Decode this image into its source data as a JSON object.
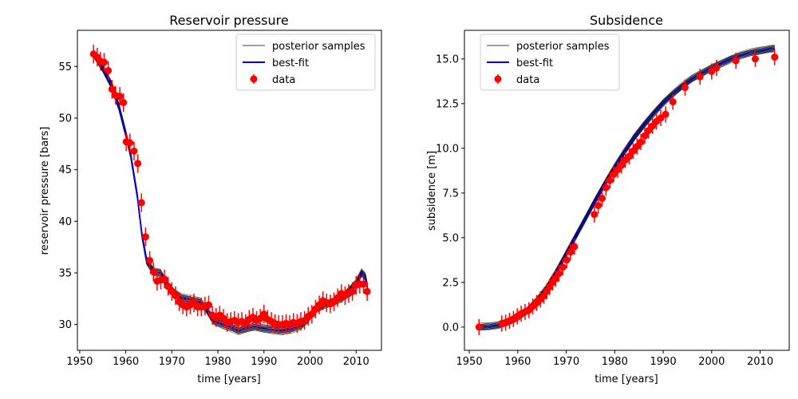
{
  "figure": {
    "background": "#ffffff"
  },
  "chart_data": [
    {
      "type": "line",
      "title": "Reservoir pressure",
      "xlabel": "time [years]",
      "ylabel": "reservoir pressure [bars]",
      "xlim": [
        1949.5,
        2015.5
      ],
      "ylim": [
        27.5,
        58.5
      ],
      "xticks": [
        1950,
        1960,
        1970,
        1980,
        1990,
        2000,
        2010
      ],
      "yticks": [
        30,
        35,
        40,
        45,
        50,
        55
      ],
      "grid": false,
      "legend": {
        "location": "upper right",
        "entries": [
          {
            "label": "posterior samples",
            "kind": "line",
            "color": "#000000"
          },
          {
            "label": "best-fit",
            "kind": "line",
            "color": "#0000ff"
          },
          {
            "label": "data",
            "kind": "errorbar",
            "color": "#ff0000"
          }
        ]
      },
      "series": [
        {
          "name": "best-fit",
          "color": "#0000ff",
          "x": [
            1952.9,
            1955,
            1957,
            1958.5,
            1960,
            1961,
            1962.5,
            1963.5,
            1964.5,
            1966,
            1967.5,
            1969,
            1970.5,
            1972,
            1974,
            1976,
            1977.5,
            1979,
            1981,
            1983,
            1984.5,
            1986,
            1988,
            1990,
            1992,
            1994,
            1996,
            1998,
            1999.5,
            2001,
            2003,
            2005,
            2007,
            2008.5,
            2010,
            2011.2,
            2012,
            2012.5
          ],
          "y": [
            56.3,
            54.8,
            53.1,
            51.1,
            48.5,
            46.6,
            42.5,
            38.7,
            36.2,
            35.1,
            35.0,
            33.8,
            33.1,
            32.6,
            32.4,
            32.2,
            31.5,
            30.4,
            30.0,
            29.7,
            29.4,
            29.6,
            29.8,
            29.6,
            29.5,
            29.4,
            29.6,
            29.9,
            30.5,
            31.4,
            31.9,
            32.2,
            32.6,
            33.3,
            34.0,
            35.0,
            34.6,
            33.5
          ]
        },
        {
          "name": "posterior samples",
          "color": "#000000",
          "spread": 0.35
        },
        {
          "name": "data",
          "color": "#ff0000",
          "error": 0.9,
          "x": [
            1953,
            1953.8,
            1954.5,
            1955.3,
            1956.2,
            1957,
            1957.8,
            1958.7,
            1959.5,
            1960.1,
            1960.9,
            1961.8,
            1962.6,
            1963.4,
            1964.3,
            1965.2,
            1966,
            1966.8,
            1967.6,
            1968.4,
            1969.2,
            1970,
            1970.8,
            1971.6,
            1972.4,
            1973.2,
            1974,
            1974.8,
            1975.6,
            1976.4,
            1977.2,
            1978,
            1978.8,
            1979.6,
            1980.4,
            1981.2,
            1982,
            1982.8,
            1983.6,
            1984.4,
            1985.2,
            1986,
            1986.8,
            1987.6,
            1988.4,
            1989.2,
            1990,
            1990.8,
            1991.6,
            1992.4,
            1993.2,
            1994,
            1994.8,
            1995.6,
            1996.4,
            1997.2,
            1998,
            1998.8,
            1999.6,
            2000.4,
            2001.2,
            2002,
            2002.8,
            2003.6,
            2004.4,
            2005.2,
            2006,
            2006.8,
            2007.6,
            2008.4,
            2009.2,
            2010,
            2010.8,
            2011.6,
            2012.4
          ],
          "y": [
            56.2,
            55.9,
            55.5,
            55.4,
            54.6,
            52.8,
            52.2,
            52.1,
            51.5,
            47.7,
            47.6,
            46.8,
            45.6,
            41.8,
            38.5,
            36.2,
            35.1,
            34.2,
            34.3,
            34.4,
            33.7,
            33.2,
            32.8,
            32.2,
            31.9,
            31.7,
            31.9,
            32.1,
            31.7,
            31.7,
            31.8,
            31.9,
            30.9,
            30.7,
            30.9,
            30.6,
            30.2,
            30.3,
            30.4,
            30.2,
            30.3,
            30.1,
            30.5,
            30.7,
            30.4,
            30.6,
            31.0,
            30.5,
            30.3,
            30.1,
            30.0,
            30.0,
            30.1,
            30.0,
            30.2,
            30.1,
            30.3,
            30.4,
            30.8,
            31.0,
            31.5,
            31.9,
            32.3,
            32.1,
            32.0,
            32.2,
            32.6,
            33.0,
            32.8,
            33.0,
            33.2,
            33.8,
            33.9,
            33.9,
            33.2
          ]
        }
      ]
    },
    {
      "type": "line",
      "title": "Subsidence",
      "xlabel": "time [years]",
      "ylabel": "subsidence [m]",
      "xlim": [
        1949,
        2016
      ],
      "ylim": [
        -1.3,
        16.6
      ],
      "xticks": [
        1950,
        1960,
        1970,
        1980,
        1990,
        2000,
        2010
      ],
      "yticks": [
        0.0,
        2.5,
        5.0,
        7.5,
        10.0,
        12.5,
        15.0
      ],
      "ytick_labels": [
        "0.0",
        "2.5",
        "5.0",
        "7.5",
        "10.0",
        "12.5",
        "15.0"
      ],
      "grid": false,
      "legend": {
        "location": "upper left",
        "entries": [
          {
            "label": "posterior samples",
            "kind": "line",
            "color": "#000000"
          },
          {
            "label": "best-fit",
            "kind": "line",
            "color": "#0000ff"
          },
          {
            "label": "data",
            "kind": "errorbar",
            "color": "#ff0000"
          }
        ]
      },
      "series": [
        {
          "name": "best-fit",
          "color": "#0000ff",
          "x": [
            1952,
            1954,
            1956,
            1958,
            1960,
            1962,
            1964,
            1966,
            1968,
            1970,
            1972,
            1974,
            1976,
            1978,
            1980,
            1982,
            1984,
            1986,
            1988,
            1990,
            1992,
            1994,
            1996,
            1998,
            2000,
            2002,
            2004,
            2006,
            2008,
            2010,
            2012,
            2013
          ],
          "y": [
            0.0,
            0.03,
            0.1,
            0.3,
            0.55,
            0.95,
            1.5,
            2.2,
            3.1,
            4.1,
            5.1,
            6.1,
            7.1,
            8.05,
            8.95,
            9.8,
            10.6,
            11.3,
            11.95,
            12.55,
            13.05,
            13.5,
            13.9,
            14.2,
            14.5,
            14.75,
            15.0,
            15.2,
            15.35,
            15.45,
            15.55,
            15.6
          ]
        },
        {
          "name": "posterior samples",
          "color": "#000000",
          "spread": 0.18
        },
        {
          "name": "data",
          "color": "#ff0000",
          "error": 0.45,
          "x": [
            1952,
            1956.7,
            1957.5,
            1958.3,
            1959.1,
            1959.9,
            1960.7,
            1961.5,
            1962.3,
            1963.1,
            1963.9,
            1964.7,
            1965.4,
            1966,
            1966.6,
            1967.2,
            1967.8,
            1968.5,
            1969.3,
            1970.1,
            1970.9,
            1971.7,
            1975.8,
            1976.6,
            1977.4,
            1978.2,
            1979,
            1979.8,
            1980.6,
            1981.4,
            1982.2,
            1983,
            1983.8,
            1984.6,
            1985.4,
            1986.2,
            1987,
            1987.8,
            1988.6,
            1989.5,
            1990.5,
            1992,
            1994.5,
            1997.6,
            2000,
            2001,
            2005,
            2009,
            2013
          ],
          "y": [
            0.0,
            0.2,
            0.25,
            0.35,
            0.45,
            0.6,
            0.75,
            0.85,
            0.95,
            1.15,
            1.35,
            1.55,
            1.75,
            2.0,
            2.25,
            2.5,
            2.7,
            3.0,
            3.35,
            3.75,
            4.2,
            4.5,
            6.3,
            6.8,
            7.2,
            7.8,
            8.2,
            8.55,
            8.8,
            9.05,
            9.35,
            9.55,
            9.85,
            10.1,
            10.35,
            10.7,
            11.0,
            11.25,
            11.5,
            11.7,
            11.9,
            12.6,
            13.4,
            14.0,
            14.3,
            14.5,
            14.9,
            15.0,
            15.1
          ]
        }
      ]
    }
  ]
}
